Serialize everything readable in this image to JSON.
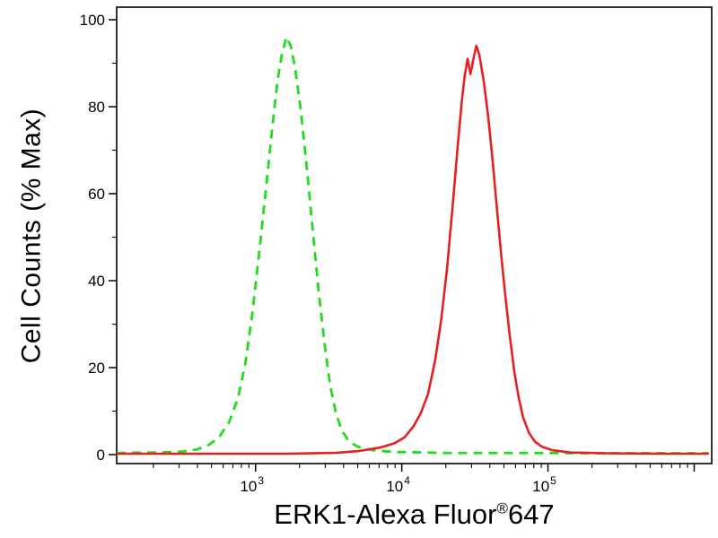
{
  "figure": {
    "ylabel": "Cell Counts (% Max)",
    "xlabel_main": "ERK1-Alexa Fluor",
    "xlabel_sup": "®",
    "xlabel_tail": "647",
    "background_color": "#ffffff",
    "axis_color": "#000000"
  },
  "chart_data": {
    "type": "line",
    "subtype": "flow-cytometry-histogram-overlay",
    "title": "",
    "xlabel": "ERK1-Alexa Fluor®647",
    "ylabel": "Cell Counts (% Max)",
    "x_scale": "log10",
    "x_log_range": [
      2.05,
      6.12
    ],
    "ylim": [
      0,
      100
    ],
    "grid": false,
    "legend": "none",
    "y_ticks": [
      0,
      20,
      40,
      60,
      80,
      100
    ],
    "y_minor_ticks": [
      10,
      30,
      50,
      70,
      90
    ],
    "x_major_exponents": [
      3,
      4,
      5
    ],
    "x_tick_labels": [
      "10³",
      "10⁴",
      "10⁵"
    ],
    "series": [
      {
        "name": "green-dashed-curve",
        "style": "dashed",
        "color": "#1edc1e",
        "width": 2.8,
        "dash_pattern": "10 7",
        "peak_log10_x": 3.21,
        "peak_y": 96,
        "points": [
          [
            2.05,
            0.4
          ],
          [
            2.35,
            0.5
          ],
          [
            2.5,
            0.7
          ],
          [
            2.6,
            1.2
          ],
          [
            2.68,
            2.2
          ],
          [
            2.75,
            4
          ],
          [
            2.82,
            7.5
          ],
          [
            2.88,
            13
          ],
          [
            2.93,
            21
          ],
          [
            2.98,
            33
          ],
          [
            3.03,
            48
          ],
          [
            3.08,
            64
          ],
          [
            3.12,
            77
          ],
          [
            3.15,
            86
          ],
          [
            3.18,
            92
          ],
          [
            3.21,
            96
          ],
          [
            3.24,
            94
          ],
          [
            3.27,
            89
          ],
          [
            3.31,
            79
          ],
          [
            3.35,
            66
          ],
          [
            3.39,
            52
          ],
          [
            3.43,
            38
          ],
          [
            3.47,
            26
          ],
          [
            3.51,
            16
          ],
          [
            3.55,
            9.5
          ],
          [
            3.59,
            5.5
          ],
          [
            3.64,
            3
          ],
          [
            3.7,
            1.8
          ],
          [
            3.8,
            1
          ],
          [
            3.95,
            0.6
          ],
          [
            4.3,
            0.4
          ],
          [
            4.8,
            0.4
          ],
          [
            5.3,
            0.3
          ],
          [
            5.8,
            0.3
          ],
          [
            6.1,
            0.3
          ]
        ]
      },
      {
        "name": "red-solid-curve",
        "style": "solid",
        "color": "#e62020",
        "width": 2.6,
        "dash_pattern": "",
        "peak_log10_x": 4.51,
        "peak_y": 94,
        "points": [
          [
            2.05,
            0.2
          ],
          [
            3.2,
            0.2
          ],
          [
            3.55,
            0.4
          ],
          [
            3.7,
            0.8
          ],
          [
            3.85,
            1.6
          ],
          [
            3.95,
            2.6
          ],
          [
            4.02,
            4
          ],
          [
            4.08,
            6.5
          ],
          [
            4.13,
            9.5
          ],
          [
            4.18,
            14
          ],
          [
            4.23,
            22
          ],
          [
            4.27,
            31
          ],
          [
            4.31,
            43
          ],
          [
            4.35,
            58
          ],
          [
            4.38,
            70
          ],
          [
            4.41,
            81
          ],
          [
            4.43,
            87
          ],
          [
            4.45,
            91
          ],
          [
            4.47,
            87.5
          ],
          [
            4.49,
            91
          ],
          [
            4.51,
            94
          ],
          [
            4.53,
            92
          ],
          [
            4.56,
            86
          ],
          [
            4.59,
            78
          ],
          [
            4.62,
            68
          ],
          [
            4.65,
            57
          ],
          [
            4.68,
            46
          ],
          [
            4.71,
            36
          ],
          [
            4.74,
            27
          ],
          [
            4.77,
            19
          ],
          [
            4.8,
            13
          ],
          [
            4.83,
            8.5
          ],
          [
            4.87,
            5
          ],
          [
            4.91,
            3
          ],
          [
            4.96,
            1.8
          ],
          [
            5.03,
            1
          ],
          [
            5.15,
            0.5
          ],
          [
            5.4,
            0.3
          ],
          [
            5.8,
            0.2
          ],
          [
            6.1,
            0.2
          ]
        ]
      }
    ]
  }
}
